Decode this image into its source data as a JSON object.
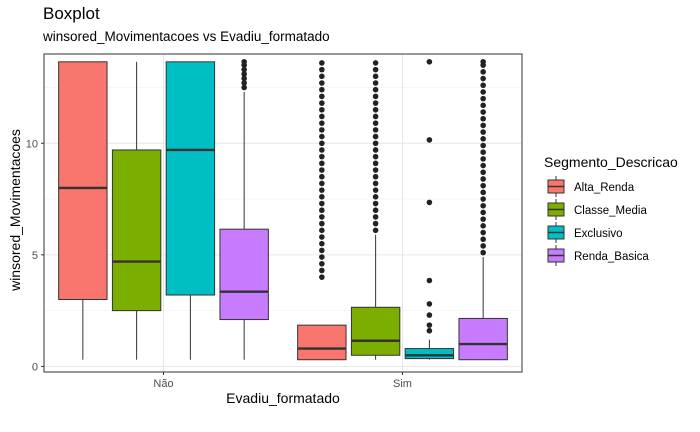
{
  "chart_data": {
    "type": "boxplot",
    "title": "Boxplot",
    "subtitle": "winsored_Movimentacoes vs Evadiu_formatado",
    "xlabel": "Evadiu_formatado",
    "ylabel": "winsored_Movimentacoes",
    "ylim": [
      -0.25,
      14.0
    ],
    "yticks": [
      0,
      5,
      10
    ],
    "categories": [
      "Não",
      "Sim"
    ],
    "grid": true,
    "legend": {
      "title": "Segmento_Descricao",
      "position": "right"
    },
    "series": [
      {
        "name": "Alta_Renda",
        "color": "#F8766D",
        "values": [
          {
            "min": 0.3,
            "q1": 3.0,
            "median": 8.0,
            "q3": 13.65,
            "max": 13.65,
            "outliers": []
          },
          {
            "min": 0.3,
            "q1": 0.3,
            "median": 0.8,
            "q3": 1.85,
            "max": 1.85,
            "outliers": [
              4.0,
              4.3,
              4.6,
              4.9,
              5.2,
              5.5,
              5.8,
              6.1,
              6.4,
              6.7,
              7.0,
              7.3,
              7.6,
              7.9,
              8.2,
              8.5,
              8.8,
              9.1,
              9.4,
              9.7,
              10.0,
              10.3,
              10.6,
              10.9,
              11.2,
              11.5,
              11.8,
              12.1,
              12.4,
              12.7,
              13.0,
              13.3,
              13.6
            ]
          }
        ]
      },
      {
        "name": "Classe_Media",
        "color": "#7CAE00",
        "values": [
          {
            "min": 0.3,
            "q1": 2.5,
            "median": 4.7,
            "q3": 9.7,
            "max": 13.65,
            "outliers": []
          },
          {
            "min": 0.3,
            "q1": 0.5,
            "median": 1.15,
            "q3": 2.65,
            "max": 5.9,
            "outliers": [
              6.1,
              6.4,
              6.7,
              7.0,
              7.3,
              7.6,
              7.9,
              8.2,
              8.5,
              8.8,
              9.1,
              9.4,
              9.7,
              10.0,
              10.3,
              10.6,
              10.9,
              11.2,
              11.5,
              11.8,
              12.1,
              12.4,
              12.7,
              13.0,
              13.3,
              13.6
            ]
          }
        ]
      },
      {
        "name": "Exclusivo",
        "color": "#00BFC4",
        "values": [
          {
            "min": 0.3,
            "q1": 3.2,
            "median": 9.7,
            "q3": 13.65,
            "max": 13.65,
            "outliers": []
          },
          {
            "min": 0.3,
            "q1": 0.35,
            "median": 0.5,
            "q3": 0.8,
            "max": 1.2,
            "outliers": [
              1.6,
              1.85,
              2.3,
              2.8,
              3.85,
              7.35,
              10.15,
              13.65
            ]
          }
        ]
      },
      {
        "name": "Renda_Basica",
        "color": "#C77CFF",
        "values": [
          {
            "min": 0.3,
            "q1": 2.1,
            "median": 3.35,
            "q3": 6.15,
            "max": 12.3,
            "outliers": [
              12.5,
              12.7,
              12.9,
              13.1,
              13.3,
              13.5,
              13.65
            ]
          },
          {
            "min": 0.3,
            "q1": 0.3,
            "median": 1.0,
            "q3": 2.15,
            "max": 4.9,
            "outliers": [
              5.1,
              5.4,
              5.7,
              6.0,
              6.3,
              6.6,
              6.9,
              7.2,
              7.5,
              7.8,
              8.1,
              8.4,
              8.7,
              9.0,
              9.3,
              9.6,
              9.9,
              10.2,
              10.5,
              10.8,
              11.1,
              11.4,
              11.7,
              12.0,
              12.3,
              12.6,
              12.9,
              13.2,
              13.5,
              13.65
            ]
          }
        ]
      }
    ]
  }
}
